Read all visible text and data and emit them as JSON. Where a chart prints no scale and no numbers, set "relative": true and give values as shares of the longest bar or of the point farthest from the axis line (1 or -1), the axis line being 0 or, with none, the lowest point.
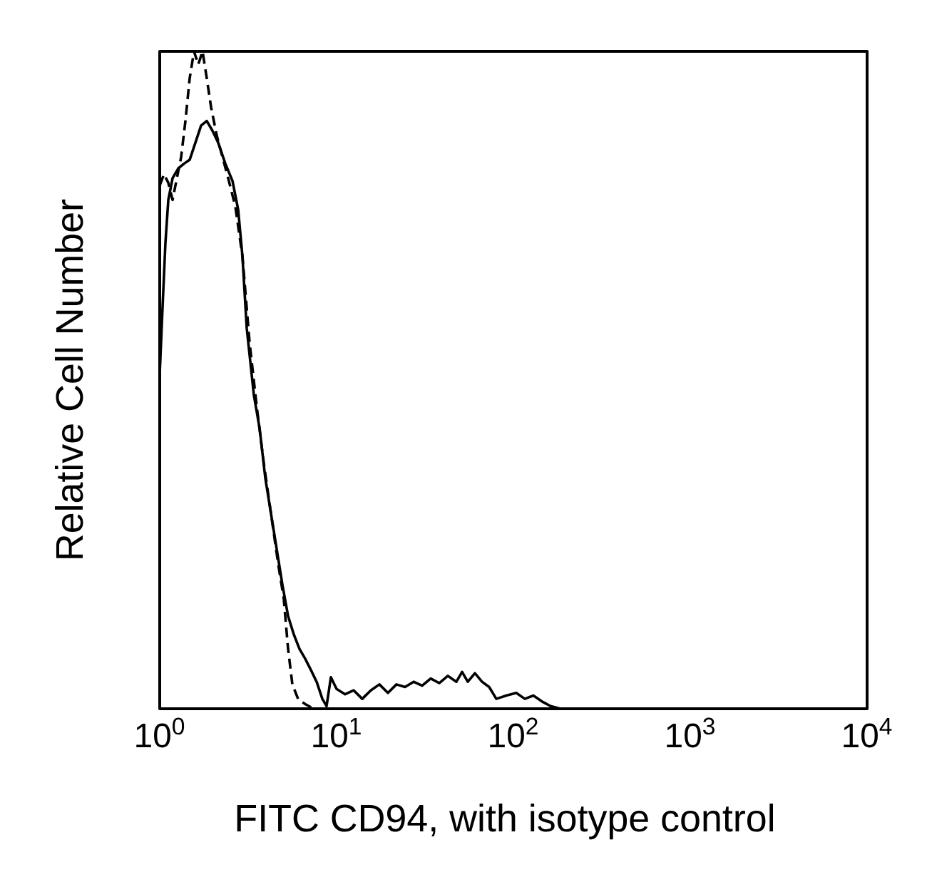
{
  "chart_data": {
    "type": "line",
    "xlabel": "FITC CD94, with isotype control",
    "ylabel": "Relative Cell Number",
    "log": "x",
    "relative": true,
    "xlim": [
      1,
      10000
    ],
    "xticks": [
      {
        "value": 1,
        "label": "10$^{0}$"
      },
      {
        "value": 10,
        "label": "10$^{1}$"
      },
      {
        "value": 100,
        "label": "10$^{2}$"
      },
      {
        "value": 1000,
        "label": "10$^{3}$"
      },
      {
        "value": 10000,
        "label": "10$^{4}$"
      }
    ],
    "series": [
      {
        "color": "#000000",
        "line_style": "solid",
        "x": [
          1.0,
          1.038,
          1.077,
          1.118,
          1.182,
          1.273,
          1.371,
          1.477,
          1.591,
          1.713,
          1.845,
          1.988,
          2.141,
          2.35,
          2.578,
          2.777,
          2.936,
          3.104,
          3.406,
          3.668,
          3.953,
          4.256,
          4.585,
          4.937,
          5.318,
          5.729,
          6.17,
          6.646,
          7.158,
          7.712,
          8.307,
          8.78,
          9.284,
          10.0,
          11.18,
          12.5,
          13.97,
          15.62,
          17.46,
          19.51,
          21.81,
          24.38,
          27.26,
          30.47,
          34.06,
          38.07,
          42.56,
          47.58,
          51.25,
          55.2,
          60.57,
          66.46,
          72.93,
          80.03,
          91.15,
          103.8,
          116.0,
          129.7,
          145.0,
          162.1,
          184.5
        ],
        "values": [
          0.51,
          0.612,
          0.709,
          0.774,
          0.807,
          0.822,
          0.829,
          0.835,
          0.861,
          0.887,
          0.894,
          0.879,
          0.861,
          0.829,
          0.803,
          0.759,
          0.688,
          0.579,
          0.477,
          0.427,
          0.351,
          0.297,
          0.243,
          0.189,
          0.141,
          0.113,
          0.091,
          0.076,
          0.059,
          0.041,
          0.015,
          0.004,
          0.048,
          0.03,
          0.022,
          0.028,
          0.015,
          0.028,
          0.037,
          0.024,
          0.037,
          0.033,
          0.041,
          0.035,
          0.046,
          0.039,
          0.05,
          0.041,
          0.056,
          0.041,
          0.054,
          0.041,
          0.033,
          0.015,
          0.02,
          0.024,
          0.015,
          0.02,
          0.011,
          0.004,
          0
        ]
      },
      {
        "color": "#000000",
        "line_style": "dashed",
        "x": [
          1.0,
          1.057,
          1.118,
          1.182,
          1.25,
          1.321,
          1.397,
          1.477,
          1.562,
          1.651,
          1.746,
          1.845,
          1.951,
          2.101,
          2.264,
          2.438,
          2.676,
          2.936,
          3.222,
          3.535,
          3.879,
          4.256,
          4.67,
          5.029,
          5.318,
          5.623,
          6.057,
          6.646,
          7.43
        ],
        "values": [
          0.796,
          0.813,
          0.8,
          0.774,
          0.807,
          0.839,
          0.894,
          0.959,
          1,
          0.98,
          1,
          0.959,
          0.915,
          0.872,
          0.839,
          0.807,
          0.764,
          0.688,
          0.557,
          0.46,
          0.373,
          0.297,
          0.221,
          0.167,
          0.091,
          0.037,
          0.015,
          0.007,
          0
        ]
      }
    ]
  }
}
